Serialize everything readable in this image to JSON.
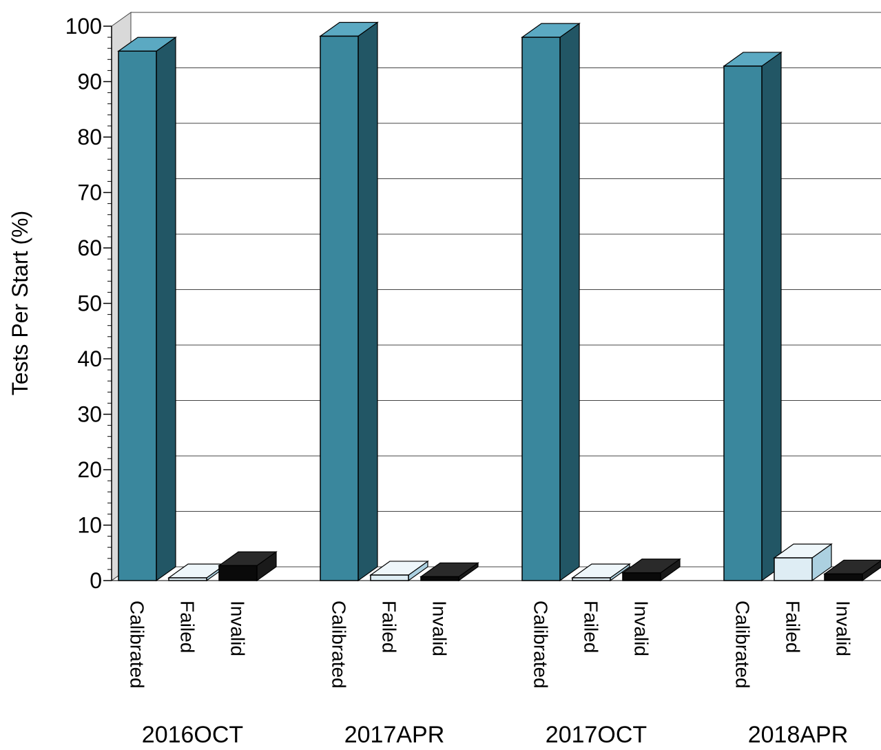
{
  "chart_data": {
    "type": "bar",
    "title": "",
    "xlabel": "",
    "ylabel": "Tests Per Start (%)",
    "ylim": [
      0,
      100
    ],
    "yticks": [
      0,
      10,
      20,
      30,
      40,
      50,
      60,
      70,
      80,
      90,
      100
    ],
    "grid": true,
    "legend": "none",
    "categories": [
      "2016OCT",
      "2017APR",
      "2017OCT",
      "2018APR"
    ],
    "series": [
      {
        "name": "Calibrated",
        "values": [
          95.5,
          98.2,
          98.0,
          92.8
        ]
      },
      {
        "name": "Failed",
        "values": [
          0.5,
          1.0,
          0.5,
          4.1
        ]
      },
      {
        "name": "Invalid",
        "values": [
          2.7,
          0.7,
          1.4,
          1.2
        ]
      }
    ],
    "colors": {
      "Calibrated": {
        "front": "#3a879d",
        "top": "#5ba9c2",
        "side": "#225665"
      },
      "Failed": {
        "front": "#deedf4",
        "top": "#eef6fa",
        "side": "#acd0e0"
      },
      "Invalid": {
        "front": "#0a0a0a",
        "top": "#2a2a2a",
        "side": "#1a1a1a"
      }
    }
  }
}
